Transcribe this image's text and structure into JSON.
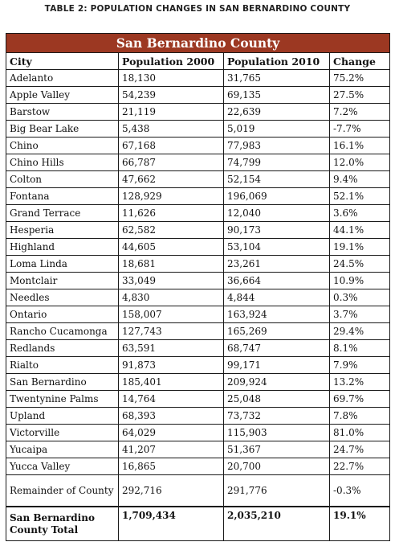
{
  "caption": "TABLE 2: POPULATION CHANGES IN SAN BERNARDINO COUNTY",
  "county": "San Bernardino County",
  "columns": [
    "City",
    "Population 2000",
    "Population 2010",
    "Change"
  ],
  "rows": [
    {
      "city": "Adelanto",
      "pop2000": "18,130",
      "pop2010": "31,765",
      "change": "75.2%"
    },
    {
      "city": "Apple Valley",
      "pop2000": "54,239",
      "pop2010": "69,135",
      "change": "27.5%"
    },
    {
      "city": "Barstow",
      "pop2000": "21,119",
      "pop2010": "22,639",
      "change": "7.2%"
    },
    {
      "city": "Big Bear Lake",
      "pop2000": "5,438",
      "pop2010": "5,019",
      "change": "-7.7%"
    },
    {
      "city": "Chino",
      "pop2000": "67,168",
      "pop2010": "77,983",
      "change": "16.1%"
    },
    {
      "city": "Chino Hills",
      "pop2000": "66,787",
      "pop2010": "74,799",
      "change": "12.0%"
    },
    {
      "city": "Colton",
      "pop2000": "47,662",
      "pop2010": "52,154",
      "change": "9.4%"
    },
    {
      "city": "Fontana",
      "pop2000": "128,929",
      "pop2010": "196,069",
      "change": "52.1%"
    },
    {
      "city": "Grand Terrace",
      "pop2000": "11,626",
      "pop2010": "12,040",
      "change": "3.6%"
    },
    {
      "city": "Hesperia",
      "pop2000": "62,582",
      "pop2010": "90,173",
      "change": "44.1%"
    },
    {
      "city": "Highland",
      "pop2000": "44,605",
      "pop2010": "53,104",
      "change": "19.1%"
    },
    {
      "city": "Loma Linda",
      "pop2000": "18,681",
      "pop2010": "23,261",
      "change": "24.5%"
    },
    {
      "city": "Montclair",
      "pop2000": "33,049",
      "pop2010": "36,664",
      "change": "10.9%"
    },
    {
      "city": "Needles",
      "pop2000": "4,830",
      "pop2010": "4,844",
      "change": "0.3%"
    },
    {
      "city": "Ontario",
      "pop2000": "158,007",
      "pop2010": "163,924",
      "change": "3.7%"
    },
    {
      "city": "Rancho Cucamonga",
      "pop2000": "127,743",
      "pop2010": "165,269",
      "change": "29.4%"
    },
    {
      "city": "Redlands",
      "pop2000": "63,591",
      "pop2010": "68,747",
      "change": "8.1%"
    },
    {
      "city": "Rialto",
      "pop2000": "91,873",
      "pop2010": "99,171",
      "change": "7.9%"
    },
    {
      "city": "San Bernardino",
      "pop2000": "185,401",
      "pop2010": "209,924",
      "change": "13.2%"
    },
    {
      "city": "Twentynine Palms",
      "pop2000": "14,764",
      "pop2010": "25,048",
      "change": "69.7%"
    },
    {
      "city": "Upland",
      "pop2000": "68,393",
      "pop2010": "73,732",
      "change": "7.8%"
    },
    {
      "city": "Victorville",
      "pop2000": "64,029",
      "pop2010": "115,903",
      "change": "81.0%"
    },
    {
      "city": "Yucaipa",
      "pop2000": "41,207",
      "pop2010": "51,367",
      "change": "24.7%"
    },
    {
      "city": "Yucca Valley",
      "pop2000": "16,865",
      "pop2010": "20,700",
      "change": "22.7%"
    },
    {
      "city": "Remainder of County",
      "pop2000": "292,716",
      "pop2010": "291,776",
      "change": "-0.3%"
    }
  ],
  "total": {
    "city": "San Bernardino County Total",
    "pop2000": "1,709,434",
    "pop2010": "2,035,210",
    "change": "19.1%"
  }
}
